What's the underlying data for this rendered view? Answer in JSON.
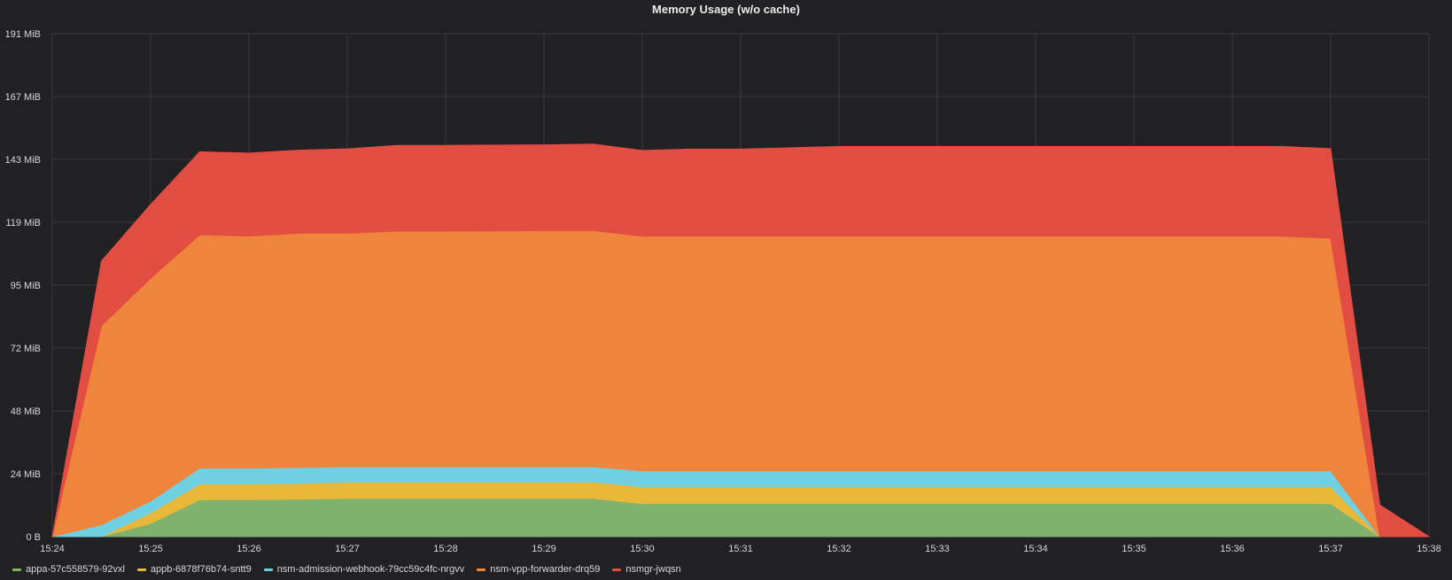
{
  "panel": {
    "title": "Memory Usage (w/o cache)"
  },
  "chart_data": {
    "type": "area",
    "stacked": true,
    "title": "Memory Usage (w/o cache)",
    "x_tick_labels": [
      "15:24",
      "15:25",
      "15:26",
      "15:27",
      "15:28",
      "15:29",
      "15:30",
      "15:31",
      "15:32",
      "15:33",
      "15:34",
      "15:35",
      "15:36",
      "15:37",
      "15:38"
    ],
    "y_tick_labels": [
      "0 B",
      "24 MiB",
      "48 MiB",
      "72 MiB",
      "95 MiB",
      "119 MiB",
      "143 MiB",
      "167 MiB",
      "191 MiB"
    ],
    "y_tick_values": [
      0,
      23.9,
      47.7,
      71.6,
      95.4,
      119.2,
      143.1,
      167,
      190.8
    ],
    "xlim": [
      "15:24",
      "15:38"
    ],
    "ylim": [
      0,
      190.8
    ],
    "y_unit": "MiB",
    "grid": true,
    "legend_position": "bottom",
    "x": [
      "15:24:00",
      "15:24:30",
      "15:25:00",
      "15:25:30",
      "15:26:00",
      "15:26:30",
      "15:27:00",
      "15:27:30",
      "15:28:00",
      "15:28:30",
      "15:29:00",
      "15:29:30",
      "15:30:00",
      "15:30:30",
      "15:31:00",
      "15:31:30",
      "15:32:00",
      "15:32:30",
      "15:33:00",
      "15:33:30",
      "15:34:00",
      "15:34:30",
      "15:35:00",
      "15:35:30",
      "15:36:00",
      "15:36:30",
      "15:37:00",
      "15:37:30",
      "15:38:00"
    ],
    "series": [
      {
        "name": "appa-57c558579-92vxl",
        "color": "#7eb26d",
        "values": [
          0,
          0,
          5,
          14,
          14,
          14.2,
          14.5,
          14.5,
          14.5,
          14.5,
          14.5,
          14.5,
          12.5,
          12.5,
          12.5,
          12.5,
          12.5,
          12.5,
          12.5,
          12.5,
          12.5,
          12.5,
          12.5,
          12.5,
          12.5,
          12.5,
          12.5,
          0,
          0
        ]
      },
      {
        "name": "appb-6878f76b74-sntt9",
        "color": "#eab839",
        "values": [
          0,
          0,
          4,
          6,
          6,
          6,
          6.2,
          6.2,
          6.2,
          6.2,
          6.2,
          6.2,
          6.5,
          6.5,
          6.5,
          6.5,
          6.5,
          6.5,
          6.5,
          6.5,
          6.5,
          6.5,
          6.5,
          6.5,
          6.5,
          6.5,
          6.5,
          0,
          0
        ]
      },
      {
        "name": "nsm-admission-webhook-79cc59c4fc-nrgvv",
        "color": "#6ed0e0",
        "values": [
          0,
          4.5,
          4.5,
          6,
          6,
          6,
          5.8,
          5.8,
          5.8,
          5.8,
          5.8,
          5.8,
          6,
          6,
          6,
          6,
          6,
          6,
          6,
          6,
          6,
          6,
          6,
          6,
          6,
          6,
          6,
          0,
          0
        ]
      },
      {
        "name": "nsm-vpp-forwarder-drq59",
        "color": "#ef843c",
        "values": [
          0,
          75.5,
          84.5,
          88.5,
          88,
          88.9,
          88.6,
          89.4,
          89.4,
          89.5,
          89.6,
          89.6,
          89,
          89,
          89,
          89,
          89,
          89,
          89,
          89,
          89,
          89,
          89,
          89,
          89,
          89,
          88.2,
          0,
          0
        ]
      },
      {
        "name": "nsmgr-jwqsn",
        "color": "#e24d42",
        "values": [
          0,
          24.5,
          28,
          31.5,
          31.5,
          31.5,
          32,
          32.5,
          32.5,
          32.5,
          32.5,
          32.8,
          32.5,
          33,
          33,
          33.5,
          34,
          34,
          34,
          34,
          34,
          34,
          34,
          34,
          34,
          34,
          34,
          12,
          0
        ]
      }
    ]
  },
  "legend": {
    "items": [
      {
        "label": "appa-57c558579-92vxl",
        "color": "#7eb26d"
      },
      {
        "label": "appb-6878f76b74-sntt9",
        "color": "#eab839"
      },
      {
        "label": "nsm-admission-webhook-79cc59c4fc-nrgvv",
        "color": "#6ed0e0"
      },
      {
        "label": "nsm-vpp-forwarder-drq59",
        "color": "#ef843c"
      },
      {
        "label": "nsmgr-jwqsn",
        "color": "#e24d42"
      }
    ]
  }
}
